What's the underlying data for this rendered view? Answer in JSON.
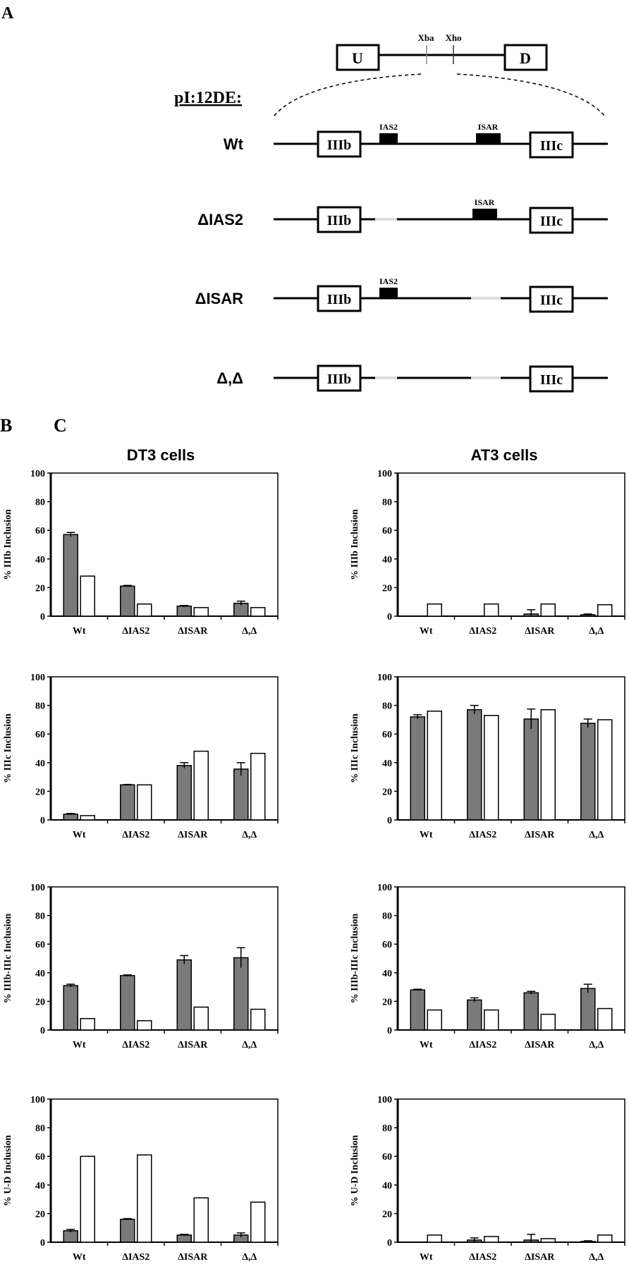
{
  "panel_labels": {
    "a": "A",
    "b": "B",
    "c": "C"
  },
  "diagram": {
    "construct_name": "pI:12DE:",
    "upstream_exon": "U",
    "downstream_exon": "D",
    "sites": [
      "Xba",
      "Xho"
    ],
    "exon_b": "IIIb",
    "exon_c": "IIIc",
    "element_1": "IAS2",
    "element_2": "ISAR",
    "rows": [
      {
        "label": "Wt",
        "has_ias2": true,
        "has_isar": true
      },
      {
        "label": "ΔIAS2",
        "has_ias2": false,
        "has_isar": true
      },
      {
        "label": "ΔISAR",
        "has_ias2": true,
        "has_isar": false
      },
      {
        "label": "Δ,Δ",
        "has_ias2": false,
        "has_isar": false
      }
    ]
  },
  "colors": {
    "filled_bar": "#7a7a7a",
    "open_bar": "#ffffff",
    "ink": "#000000"
  },
  "column_titles": {
    "left": "DT3 cells",
    "right": "AT3 cells"
  },
  "chart_data": [
    {
      "type": "bar",
      "column": "left",
      "ylabel": "% IIIb Inclusion",
      "ylim": [
        0,
        100
      ],
      "yticks": [
        0,
        20,
        40,
        60,
        80,
        100
      ],
      "categories": [
        "Wt",
        "ΔIAS2",
        "ΔISAR",
        "Δ,Δ"
      ],
      "series": [
        {
          "style": "filled",
          "values": [
            57,
            21,
            7,
            9
          ],
          "errors": [
            1.5,
            0.5,
            0.5,
            1.5
          ]
        },
        {
          "style": "open",
          "values": [
            28,
            8.5,
            6,
            6
          ]
        }
      ]
    },
    {
      "type": "bar",
      "column": "left",
      "ylabel": "% IIIc Inclusion",
      "ylim": [
        0,
        100
      ],
      "yticks": [
        0,
        20,
        40,
        60,
        80,
        100
      ],
      "categories": [
        "Wt",
        "ΔIAS2",
        "ΔISAR",
        "Δ,Δ"
      ],
      "series": [
        {
          "style": "filled",
          "values": [
            4,
            24.5,
            38,
            35.5
          ],
          "errors": [
            0.5,
            0.3,
            2,
            4.5
          ]
        },
        {
          "style": "open",
          "values": [
            3,
            24.5,
            48,
            46.5
          ]
        }
      ]
    },
    {
      "type": "bar",
      "column": "left",
      "ylabel": "% IIIb-IIIc Inclusion",
      "ylim": [
        0,
        100
      ],
      "yticks": [
        0,
        20,
        40,
        60,
        80,
        100
      ],
      "categories": [
        "Wt",
        "ΔIAS2",
        "ΔISAR",
        "Δ,Δ"
      ],
      "series": [
        {
          "style": "filled",
          "values": [
            31,
            38,
            49,
            50.5
          ],
          "errors": [
            1,
            0.5,
            3,
            7
          ]
        },
        {
          "style": "open",
          "values": [
            8,
            6.5,
            16,
            14.5
          ]
        }
      ]
    },
    {
      "type": "bar",
      "column": "left",
      "ylabel": "% U-D Inclusion",
      "ylim": [
        0,
        100
      ],
      "yticks": [
        0,
        20,
        40,
        60,
        80,
        100
      ],
      "categories": [
        "Wt",
        "ΔIAS2",
        "ΔISAR",
        "Δ,Δ"
      ],
      "series": [
        {
          "style": "filled",
          "values": [
            8,
            16,
            5,
            5
          ],
          "errors": [
            1,
            0.5,
            0.5,
            1.5
          ]
        },
        {
          "style": "open",
          "values": [
            60,
            61,
            31,
            28
          ]
        }
      ]
    },
    {
      "type": "bar",
      "column": "right",
      "ylabel": "% IIIb Inclusion",
      "ylim": [
        0,
        100
      ],
      "yticks": [
        0,
        20,
        40,
        60,
        80,
        100
      ],
      "categories": [
        "Wt",
        "ΔIAS2",
        "ΔISAR",
        "Δ,Δ"
      ],
      "series": [
        {
          "style": "filled",
          "values": [
            0,
            0,
            1.5,
            1
          ],
          "errors": [
            0,
            0,
            3,
            0.5
          ]
        },
        {
          "style": "open",
          "values": [
            8.5,
            8.5,
            8.5,
            8
          ]
        }
      ]
    },
    {
      "type": "bar",
      "column": "right",
      "ylabel": "% IIIc Inclusion",
      "ylim": [
        0,
        100
      ],
      "yticks": [
        0,
        20,
        40,
        60,
        80,
        100
      ],
      "categories": [
        "Wt",
        "ΔIAS2",
        "ΔISAR",
        "Δ,Δ"
      ],
      "series": [
        {
          "style": "filled",
          "values": [
            72,
            77,
            70.5,
            67.5
          ],
          "errors": [
            1.5,
            3,
            7,
            3
          ]
        },
        {
          "style": "open",
          "values": [
            76,
            73,
            77,
            70
          ]
        }
      ]
    },
    {
      "type": "bar",
      "column": "right",
      "ylabel": "% IIIb-IIIc Inclusion",
      "ylim": [
        0,
        100
      ],
      "yticks": [
        0,
        20,
        40,
        60,
        80,
        100
      ],
      "categories": [
        "Wt",
        "ΔIAS2",
        "ΔISAR",
        "Δ,Δ"
      ],
      "series": [
        {
          "style": "filled",
          "values": [
            28,
            21,
            26,
            29
          ],
          "errors": [
            0.5,
            1.5,
            1,
            3
          ]
        },
        {
          "style": "open",
          "values": [
            14,
            14,
            11,
            15
          ]
        }
      ]
    },
    {
      "type": "bar",
      "column": "right",
      "ylabel": "% U-D Inclusion",
      "ylim": [
        0,
        100
      ],
      "yticks": [
        0,
        20,
        40,
        60,
        80,
        100
      ],
      "categories": [
        "Wt",
        "ΔIAS2",
        "ΔISAR",
        "Δ,Δ"
      ],
      "series": [
        {
          "style": "filled",
          "values": [
            0,
            1.5,
            1.5,
            0.5
          ],
          "errors": [
            0,
            1.5,
            4,
            0.5
          ]
        },
        {
          "style": "open",
          "values": [
            5,
            4,
            2.5,
            5
          ]
        }
      ]
    }
  ]
}
